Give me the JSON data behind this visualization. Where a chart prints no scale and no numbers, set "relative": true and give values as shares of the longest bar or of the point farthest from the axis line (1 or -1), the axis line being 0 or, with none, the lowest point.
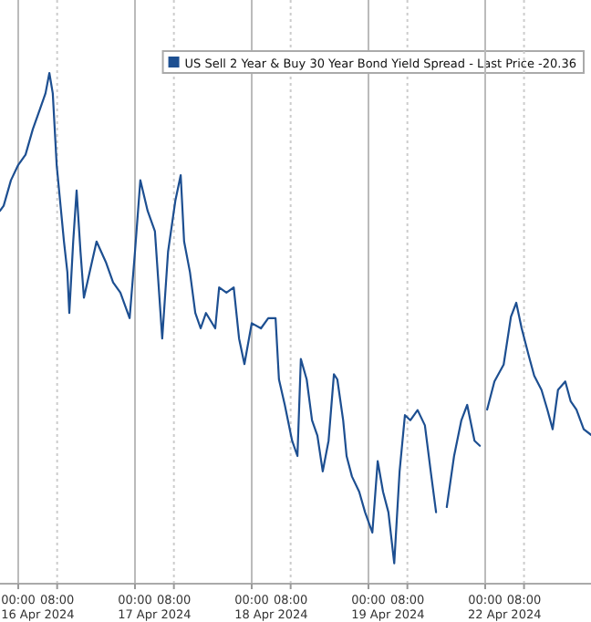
{
  "chart_data": [
    {
      "type": "line",
      "relative": true,
      "grid": "x",
      "legend": "top right",
      "line_style": "solid",
      "marker": "none",
      "xlim": [
        "2024-04-15T20:15",
        "2024-04-20T00:00"
      ],
      "xticks": [
        {
          "value": "2024-04-16T00:00",
          "label": "00:00"
        },
        {
          "value": "2024-04-16T08:00",
          "label": "08:00"
        },
        {
          "value": "2024-04-17T00:00",
          "label": "00:00"
        },
        {
          "value": "2024-04-17T08:00",
          "label": "08:00"
        },
        {
          "value": "2024-04-18T00:00",
          "label": "00:00"
        },
        {
          "value": "2024-04-18T08:00",
          "label": "08:00"
        },
        {
          "value": "2024-04-19T00:00",
          "label": "00:00"
        },
        {
          "value": "2024-04-19T08:00",
          "label": "08:00"
        }
      ],
      "annotations": [
        "16 Apr 2024",
        "17 Apr 2024",
        "18 Apr 2024",
        "19 Apr 2024"
      ],
      "series": [
        {
          "name": "US Sell 2 Year & Buy 30 Year Bond Yield Spread - Last Price -20.36",
          "color": "#1d4f91",
          "x": [
            "2024-04-15T20:15",
            "2024-04-15T21:00",
            "2024-04-15T22:30",
            "2024-04-16T00:00",
            "2024-04-16T01:30",
            "2024-04-16T03:00",
            "2024-04-16T04:30",
            "2024-04-16T05:36",
            "2024-04-16T06:24",
            "2024-04-16T07:06",
            "2024-04-16T07:54",
            "2024-04-16T08:36",
            "2024-04-16T09:24",
            "2024-04-16T10:06",
            "2024-04-16T10:30",
            "2024-04-16T11:18",
            "2024-04-16T12:00",
            "2024-04-16T12:48",
            "2024-04-16T13:30",
            "2024-04-16T16:06",
            "2024-04-16T18:00",
            "2024-04-16T19:30",
            "2024-04-16T21:00",
            "2024-04-16T22:54",
            "2024-04-17T00:00",
            "2024-04-17T01:06",
            "2024-04-17T02:36",
            "2024-04-17T04:06",
            "2024-04-17T05:36",
            "2024-04-17T06:48",
            "2024-04-17T08:18",
            "2024-04-17T09:24",
            "2024-04-17T10:06",
            "2024-04-17T11:18",
            "2024-04-17T12:24",
            "2024-04-17T13:30",
            "2024-04-17T14:36",
            "2024-04-17T16:30",
            "2024-04-17T17:18",
            "2024-04-17T18:48",
            "2024-04-17T20:18",
            "2024-04-17T21:24",
            "2024-04-17T22:30",
            "2024-04-18T00:00",
            "2024-04-18T01:54",
            "2024-04-18T03:24",
            "2024-04-18T04:54",
            "2024-04-18T05:36",
            "2024-04-18T06:48",
            "2024-04-18T08:18",
            "2024-04-18T09:24",
            "2024-04-18T10:06",
            "2024-04-18T11:18",
            "2024-04-18T12:24",
            "2024-04-18T13:30",
            "2024-04-18T14:36",
            "2024-04-18T15:48",
            "2024-04-18T16:54",
            "2024-04-18T17:36",
            "2024-04-18T18:48",
            "2024-04-18T19:30",
            "2024-04-18T20:36",
            "2024-04-18T22:06",
            "2024-04-18T23:18",
            "2024-04-19T00:48",
            "2024-04-19T01:54",
            "2024-04-19T03:00",
            "2024-04-19T04:06",
            "2024-04-19T05:18",
            "2024-04-19T06:24",
            "2024-04-19T07:30",
            "2024-04-19T08:36",
            "2024-04-19T10:06",
            "2024-04-19T11:36",
            "2024-04-19T12:48",
            "2024-04-19T13:54",
            "2024-04-19T15:00",
            "2024-04-19T16:06",
            "2024-04-19T17:36",
            "2024-04-19T19:06",
            "2024-04-19T20:18",
            "2024-04-19T21:48",
            "2024-04-19T22:54"
          ],
          "values": [
            0.73,
            0.74,
            0.79,
            0.82,
            0.84,
            0.89,
            0.93,
            0.96,
            1,
            0.96,
            0.82,
            0.75,
            0.67,
            0.61,
            0.53,
            0.67,
            0.77,
            0.65,
            0.56,
            0.67,
            0.63,
            0.59,
            0.57,
            0.52,
            0.65,
            0.79,
            0.73,
            0.69,
            0.48,
            0.65,
            0.75,
            0.8,
            0.67,
            0.61,
            0.53,
            0.5,
            0.53,
            0.5,
            0.58,
            0.57,
            0.58,
            0.48,
            0.43,
            0.51,
            0.5,
            0.52,
            0.52,
            0.4,
            0.35,
            0.28,
            0.25,
            0.44,
            0.4,
            0.32,
            0.29,
            0.22,
            0.28,
            0.41,
            0.4,
            0.32,
            0.25,
            0.21,
            0.18,
            0.14,
            0.1,
            0.24,
            0.18,
            0.14,
            0.04,
            0.22,
            0.33,
            0.32,
            0.34,
            0.31,
            0.22,
            0.14,
            null,
            0.15,
            0.25,
            0.32,
            0.35,
            0.28,
            0.27
          ]
        }
      ]
    },
    {
      "type": "line",
      "relative": true,
      "grid": "x",
      "line_style": "solid",
      "marker": "none",
      "xlim": [
        "2024-04-22T00:00",
        "2024-04-22T21:48"
      ],
      "xticks": [
        {
          "value": "2024-04-22T00:00",
          "label": "00:00"
        },
        {
          "value": "2024-04-22T08:00",
          "label": "08:00"
        }
      ],
      "annotations": [
        "22 Apr 2024"
      ],
      "series": [
        {
          "color": "#1d4f91",
          "x": [
            "2024-04-22T00:24",
            "2024-04-22T01:54",
            "2024-04-22T03:48",
            "2024-04-22T05:18",
            "2024-04-22T06:24",
            "2024-04-22T07:30",
            "2024-04-22T09:00",
            "2024-04-22T10:06",
            "2024-04-22T11:36",
            "2024-04-22T12:48",
            "2024-04-22T13:54",
            "2024-04-22T15:00",
            "2024-04-22T16:30",
            "2024-04-22T17:36",
            "2024-04-22T18:48",
            "2024-04-22T20:18",
            "2024-04-22T21:48"
          ],
          "values": [
            0.62,
            0.72,
            0.78,
            0.95,
            1,
            0.91,
            0.81,
            0.74,
            0.69,
            0.62,
            0.55,
            0.69,
            0.72,
            0.65,
            0.62,
            0.55,
            0.53
          ]
        }
      ]
    }
  ]
}
